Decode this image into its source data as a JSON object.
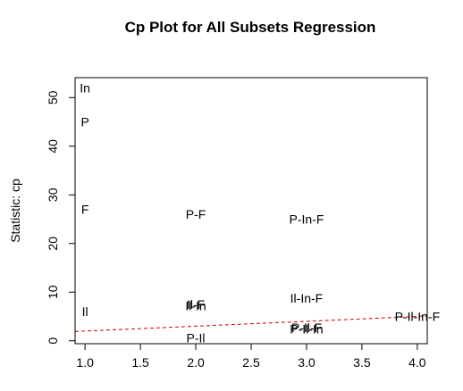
{
  "chart_data": {
    "type": "scatter",
    "title": "Cp Plot for All Subsets Regression",
    "xlabel": "",
    "ylabel": "Statistic: cp",
    "xlim": [
      0.91,
      4.09
    ],
    "ylim": [
      -0.6,
      54.1
    ],
    "x_ticks": [
      1.0,
      1.5,
      2.0,
      2.5,
      3.0,
      3.5,
      4.0
    ],
    "x_tick_labels": [
      "1.0",
      "1.5",
      "2.0",
      "2.5",
      "3.0",
      "3.5",
      "4.0"
    ],
    "y_ticks": [
      0,
      10,
      20,
      30,
      40,
      50
    ],
    "y_tick_labels": [
      "0",
      "10",
      "20",
      "30",
      "40",
      "50"
    ],
    "grid": false,
    "points": [
      {
        "x": 1,
        "y": 52.0,
        "label": "In"
      },
      {
        "x": 1,
        "y": 45.0,
        "label": "P"
      },
      {
        "x": 1,
        "y": 27.0,
        "label": "F"
      },
      {
        "x": 1,
        "y": 6.0,
        "label": "Il"
      },
      {
        "x": 2,
        "y": 26.0,
        "label": "P-F"
      },
      {
        "x": 2,
        "y": 7.5,
        "label": "Il-F"
      },
      {
        "x": 2,
        "y": 7.2,
        "label": "Il-In"
      },
      {
        "x": 2,
        "y": 0.6,
        "label": "P-Il"
      },
      {
        "x": 3,
        "y": 25.0,
        "label": "P-In-F"
      },
      {
        "x": 3,
        "y": 8.8,
        "label": "Il-In-F"
      },
      {
        "x": 3,
        "y": 2.7,
        "label": "P-Il-F"
      },
      {
        "x": 3,
        "y": 2.4,
        "label": "P-Il-In"
      },
      {
        "x": 4,
        "y": 5.0,
        "label": "P-Il-In-F"
      }
    ],
    "reference_line": {
      "x1": 0.91,
      "y1": 1.91,
      "x2": 4.09,
      "y2": 5.09,
      "style": "dashed",
      "color": "#cc0000"
    },
    "colors": {
      "points": "#000000",
      "reference_line": "#cc0000",
      "frame": "#000000"
    }
  }
}
